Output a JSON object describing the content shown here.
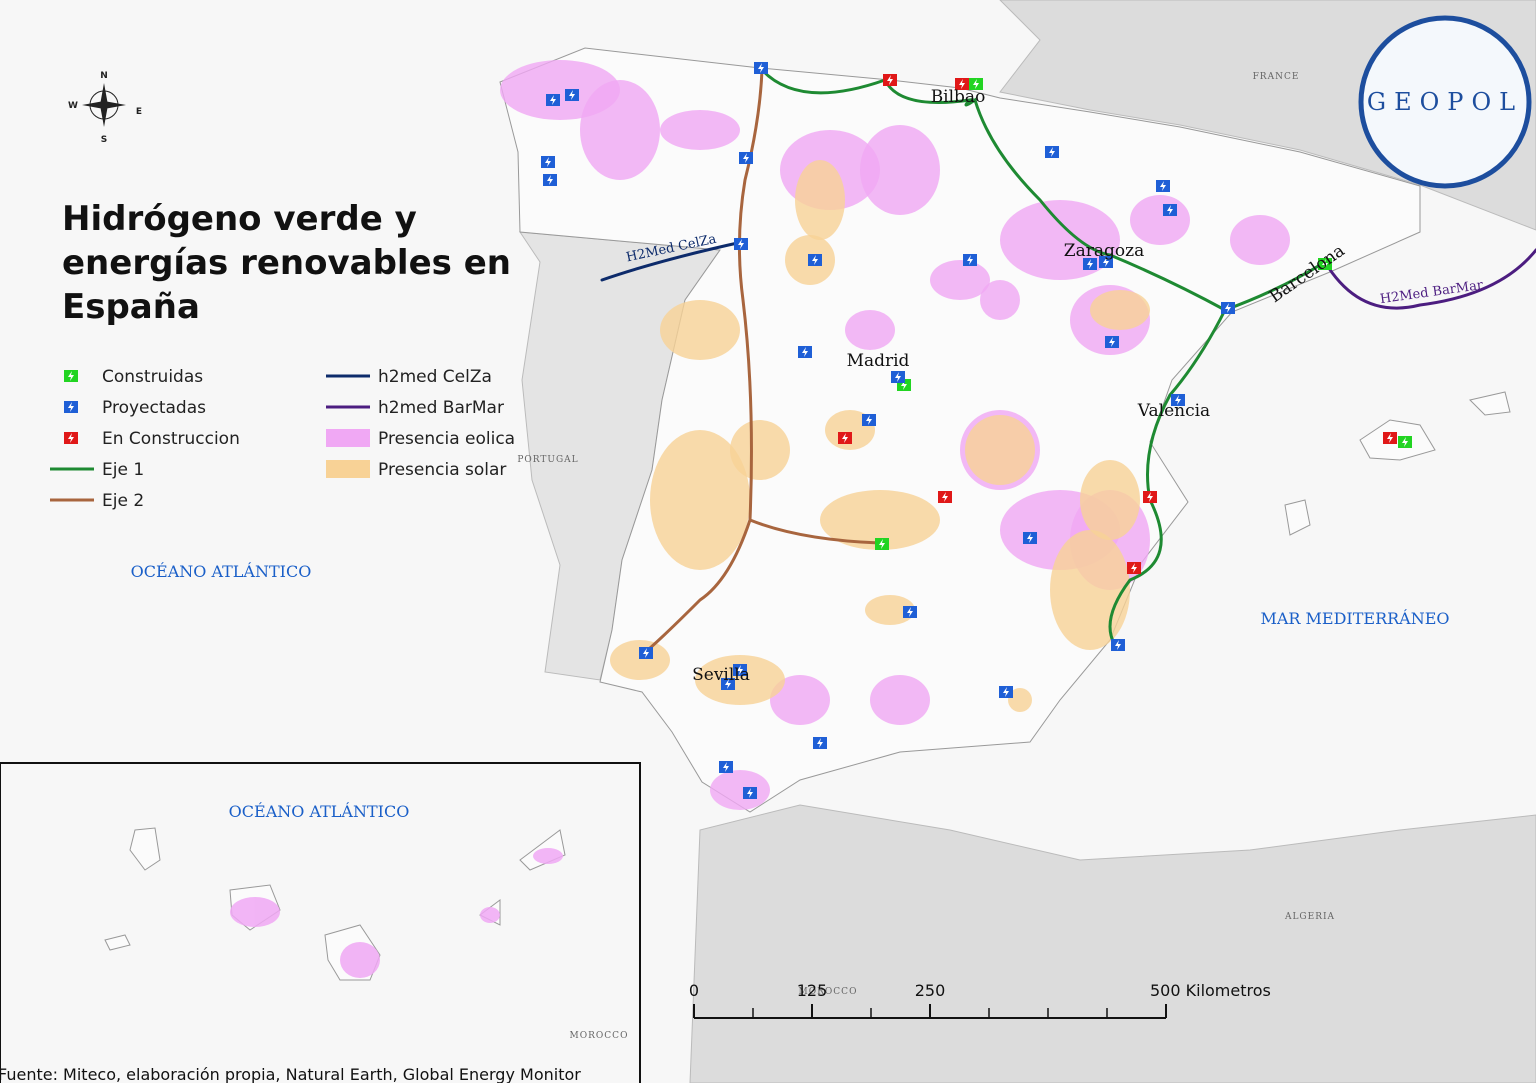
{
  "title_lines": [
    "Hidrógeno verde y",
    "energías renovables en",
    "España"
  ],
  "legend": [
    {
      "label": "Construidas",
      "color": "#22d422",
      "kind": "icon"
    },
    {
      "label": "Proyectadas",
      "color": "#1f5fd6",
      "kind": "icon"
    },
    {
      "label": "En Construccion",
      "color": "#e01818",
      "kind": "icon"
    },
    {
      "label": "Eje 1",
      "color": "#1e8a32",
      "kind": "line"
    },
    {
      "label": "Eje 2",
      "color": "#a8653e",
      "kind": "line"
    },
    {
      "label": "h2med CelZa",
      "color": "#0d2b6b",
      "kind": "line"
    },
    {
      "label": "h2med BarMar",
      "color": "#4c1d80",
      "kind": "line"
    },
    {
      "label": "Presencia eolica",
      "color": "#f0a8f4",
      "kind": "patch"
    },
    {
      "label": "Presencia solar",
      "color": "#f8d296",
      "kind": "patch"
    }
  ],
  "map_labels": {
    "ocean": "OCÉANO ATLÁNTICO",
    "sea": "MAR MEDITERRÁNEO",
    "portugal": "PORTUGAL",
    "france": "FRANCE",
    "algeria": "ALGERIA",
    "morocco": "MOROCCO"
  },
  "inset": {
    "ocean": "OCÉANO ATLÁNTICO",
    "morocco": "MOROCCO"
  },
  "cities": [
    "Madrid",
    "Bilbao",
    "Zaragoza",
    "Barcelona",
    "Valencia",
    "Sevilla"
  ],
  "pipelines": [
    "H2Med CelZa",
    "H2Med BarMar"
  ],
  "compass": [
    "N",
    "S",
    "E",
    "W"
  ],
  "logo": "GEOPOL",
  "scale_bar": {
    "ticks": [
      0,
      125,
      250,
      {
        "value": 500,
        "label": "500 Kilometros"
      }
    ]
  },
  "source": "Fuente: Miteco, elaboración propia, Natural Earth, Global Energy Monitor"
}
